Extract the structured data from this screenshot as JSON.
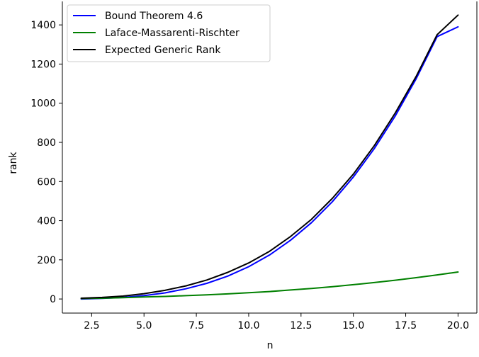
{
  "chart_data": {
    "type": "line",
    "title": "",
    "xlabel": "n",
    "ylabel": "rank",
    "xlim": [
      1.1,
      20.9
    ],
    "ylim": [
      -72,
      1520
    ],
    "x_ticks": [
      2.5,
      5.0,
      7.5,
      10.0,
      12.5,
      15.0,
      17.5,
      20.0
    ],
    "x_tick_labels": [
      "2.5",
      "5.0",
      "7.5",
      "10.0",
      "12.5",
      "15.0",
      "17.5",
      "20.0"
    ],
    "y_ticks": [
      0,
      200,
      400,
      600,
      800,
      1000,
      1200,
      1400
    ],
    "y_tick_labels": [
      "0",
      "200",
      "400",
      "600",
      "800",
      "1000",
      "1200",
      "1400"
    ],
    "grid": false,
    "legend_position": "top-left",
    "x": [
      2,
      3,
      4,
      5,
      6,
      7,
      8,
      9,
      10,
      11,
      12,
      13,
      14,
      15,
      16,
      17,
      18,
      19,
      20
    ],
    "series": [
      {
        "name": "Bound Theorem 4.6",
        "color": "#0000ff",
        "values": [
          0,
          3,
          8,
          17,
          31,
          52,
          80,
          117,
          165,
          225,
          300,
          390,
          497,
          623,
          768,
          935,
          1125,
          1340,
          1390
        ]
      },
      {
        "name": "Laface-Massarenti-Rischter",
        "color": "#008000",
        "values": [
          2,
          4,
          7,
          10,
          13,
          17,
          21,
          26,
          32,
          38,
          46,
          54,
          63,
          73,
          84,
          96,
          109,
          123,
          138
        ]
      },
      {
        "name": "Expected Generic Rank",
        "color": "#000000",
        "values": [
          4,
          8,
          15,
          27,
          44,
          67,
          97,
          136,
          184,
          244,
          319,
          407,
          514,
          638,
          783,
          950,
          1137,
          1350,
          1450
        ]
      }
    ]
  }
}
